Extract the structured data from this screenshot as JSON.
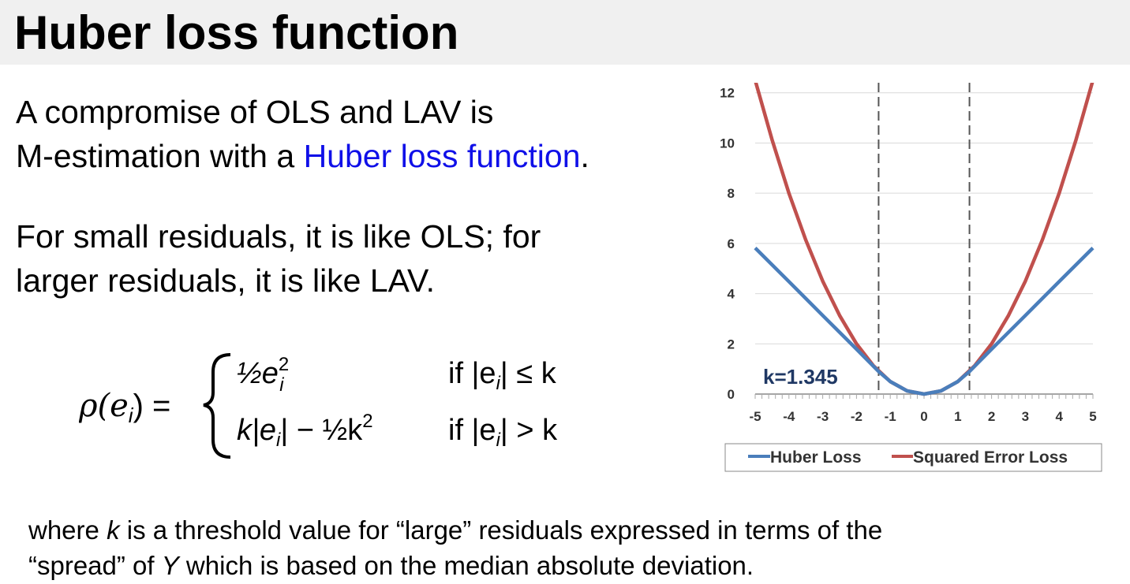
{
  "title": "Huber loss function",
  "paragraph1": {
    "line1": "A compromise of OLS and LAV is",
    "line2_prefix": "M-estimation with a ",
    "line2_link": "Huber loss function",
    "line2_suffix": "."
  },
  "paragraph2": {
    "line1": "For small residuals, it is like OLS; for",
    "line2": "larger residuals, it is like LAV."
  },
  "formula": {
    "lhs": "ρ(e",
    "lhs_sub": "i",
    "lhs_close": ") =",
    "case1_expr": "½e",
    "case1_cond": "if |e",
    "case1_cond_tail": "| ≤ k",
    "case2_expr": "k|e",
    "case2_expr_tail": "| − ½k",
    "case2_cond": "if |e",
    "case2_cond_tail": "| > k"
  },
  "footer": {
    "line1_a": "where ",
    "line1_k": "k",
    "line1_b": " is a threshold value for “large” residuals expressed in terms of the",
    "line2_a": "“spread” of ",
    "line2_y": "Y",
    "line2_b": " which is based on the median absolute deviation."
  },
  "chart_data": {
    "type": "line",
    "k": 1.345,
    "annotation": "k=1.345",
    "x_ticks": [
      "-5",
      "-4",
      "-3",
      "-2",
      "-1",
      "0",
      "1",
      "2",
      "3",
      "4",
      "5"
    ],
    "y_ticks": [
      "0",
      "2",
      "4",
      "6",
      "8",
      "10",
      "12"
    ],
    "xlim": [
      -5,
      5
    ],
    "ylim": [
      0,
      12.4
    ],
    "grid": true,
    "legend_position": "bottom",
    "vlines": [
      -1.345,
      1.345
    ],
    "series": [
      {
        "name": "Huber Loss",
        "color": "#4a7ebb",
        "x": [
          -5,
          -4,
          -3,
          -2,
          -1.345,
          -1,
          -0.5,
          0,
          0.5,
          1,
          1.345,
          2,
          3,
          4,
          5
        ],
        "y": [
          5.82,
          4.48,
          3.13,
          1.79,
          0.9,
          0.5,
          0.125,
          0,
          0.125,
          0.5,
          0.9,
          1.79,
          3.13,
          4.48,
          5.82
        ]
      },
      {
        "name": "Squared Error Loss",
        "color": "#c0504d",
        "x": [
          -5,
          -4.5,
          -4,
          -3.5,
          -3,
          -2.5,
          -2,
          -1.5,
          -1,
          -0.5,
          0,
          0.5,
          1,
          1.5,
          2,
          2.5,
          3,
          3.5,
          4,
          4.5,
          5
        ],
        "y": [
          12.5,
          10.13,
          8,
          6.13,
          4.5,
          3.13,
          2,
          1.13,
          0.5,
          0.125,
          0,
          0.125,
          0.5,
          1.13,
          2,
          3.13,
          4.5,
          6.13,
          8,
          10.13,
          12.5
        ]
      }
    ]
  }
}
